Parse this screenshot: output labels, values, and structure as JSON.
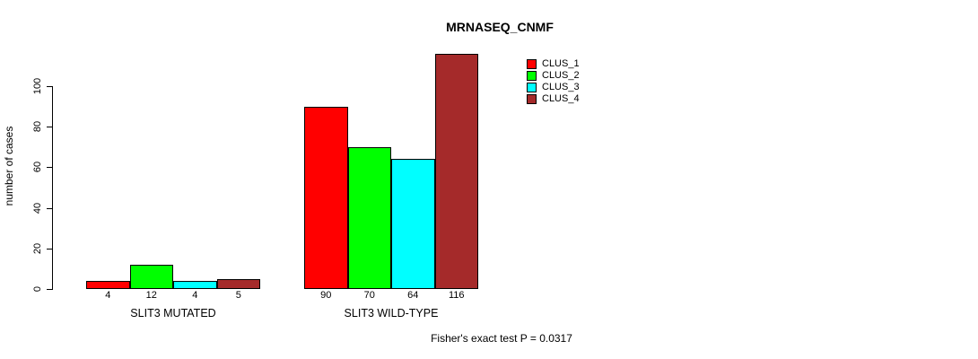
{
  "chart_data": {
    "type": "bar",
    "title": "MRNASEQ_CNMF",
    "xlabel": "",
    "ylabel": "number of cases",
    "yticks": [
      0,
      20,
      40,
      60,
      80,
      100
    ],
    "ylim": [
      0,
      116
    ],
    "grid": false,
    "legend_position": "top-right",
    "bar_value_labels_shown": true,
    "groups": [
      {
        "label": "SLIT3 MUTATED",
        "values": [
          4,
          12,
          4,
          5
        ]
      },
      {
        "label": "SLIT3 WILD-TYPE",
        "values": [
          90,
          70,
          64,
          116
        ]
      }
    ],
    "series": [
      {
        "name": "CLUS_1",
        "color": "#FF0000"
      },
      {
        "name": "CLUS_2",
        "color": "#00FF00"
      },
      {
        "name": "CLUS_3",
        "color": "#00FFFF"
      },
      {
        "name": "CLUS_4",
        "color": "#A52A2A"
      }
    ],
    "annotation": "Fisher's exact test P = 0.0317"
  }
}
